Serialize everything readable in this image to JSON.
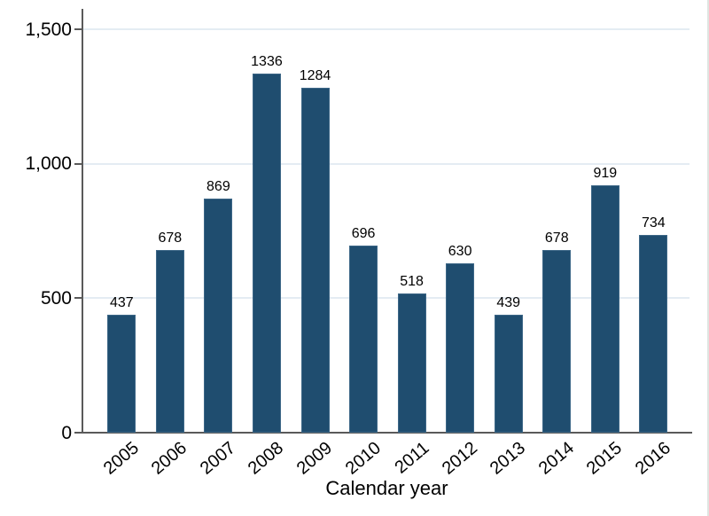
{
  "chart_data": {
    "type": "bar",
    "categories": [
      "2005",
      "2006",
      "2007",
      "2008",
      "2009",
      "2010",
      "2011",
      "2012",
      "2013",
      "2014",
      "2015",
      "2016"
    ],
    "values": [
      437,
      678,
      869,
      1336,
      1284,
      696,
      518,
      630,
      439,
      678,
      919,
      734
    ],
    "bar_value_labels": [
      "437",
      "678",
      "869",
      "1336",
      "1284",
      "696",
      "518",
      "630",
      "439",
      "678",
      "919",
      "734"
    ],
    "title": "",
    "xlabel": "Calendar year",
    "ylabel": "",
    "ylim": [
      0,
      1500
    ],
    "yticks": [
      {
        "value": 0,
        "label": "0"
      },
      {
        "value": 500,
        "label": "500"
      },
      {
        "value": 1000,
        "label": "1,000"
      },
      {
        "value": 1500,
        "label": "1,500"
      }
    ],
    "grid": "horizontal gridlines at y tick values",
    "legend": "none",
    "x_tick_rotation_deg": 40
  },
  "colors": {
    "bar_fill": "#1f4d6f",
    "bar_border": "#3d6787",
    "gridline": "#e4ecf3",
    "axis": "#5a5a5a",
    "text": "#000000",
    "background": "#ffffff"
  }
}
